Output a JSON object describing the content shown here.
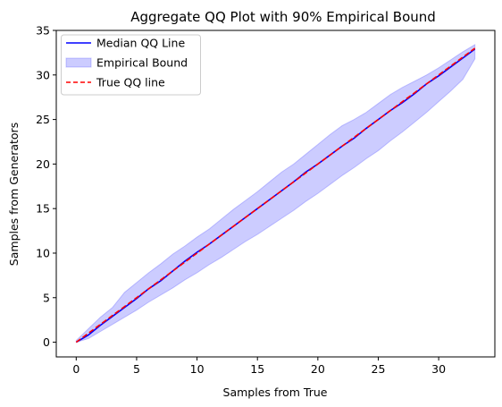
{
  "chart_data": {
    "type": "line",
    "title": "Aggregate QQ Plot with  90% Empirical Bound",
    "xlabel": "Samples from True",
    "ylabel": "Samples from Generators",
    "xlim": [
      -1.65,
      34.65
    ],
    "ylim": [
      -1.65,
      35.0
    ],
    "xticks": [
      0,
      5,
      10,
      15,
      20,
      25,
      30
    ],
    "yticks": [
      0,
      5,
      10,
      15,
      20,
      25,
      30,
      35
    ],
    "grid": false,
    "legend_position": "top-left",
    "legend": [
      {
        "label": "Median QQ Line",
        "kind": "line",
        "color": "#0000ff"
      },
      {
        "label": "Empirical Bound",
        "kind": "band",
        "color": "#0000ff"
      },
      {
        "label": "True QQ line",
        "kind": "dashed-line",
        "color": "#ff0000"
      }
    ],
    "series": [
      {
        "name": "Median QQ Line",
        "color": "#0000ff",
        "x": [
          0,
          1,
          2,
          3,
          4,
          5,
          6,
          7,
          8,
          9,
          10,
          11,
          12,
          13,
          14,
          15,
          16,
          17,
          18,
          19,
          20,
          21,
          22,
          23,
          24,
          25,
          26,
          27,
          28,
          29,
          30,
          31,
          32,
          33
        ],
        "y": [
          0,
          0.8,
          1.9,
          2.9,
          3.9,
          4.9,
          6.0,
          6.9,
          8.0,
          9.1,
          10.1,
          11.0,
          12.0,
          13.0,
          14.0,
          15.0,
          16.0,
          17.0,
          18.0,
          19.1,
          20.0,
          21.0,
          22.0,
          22.9,
          24.0,
          25.0,
          26.0,
          26.9,
          27.9,
          29.0,
          29.9,
          30.9,
          31.9,
          32.9
        ]
      },
      {
        "name": "Empirical Bound",
        "color": "#0000ff",
        "x": [
          0,
          1,
          2,
          3,
          4,
          5,
          6,
          7,
          8,
          9,
          10,
          11,
          12,
          13,
          14,
          15,
          16,
          17,
          18,
          19,
          20,
          21,
          22,
          23,
          24,
          25,
          26,
          27,
          28,
          29,
          30,
          31,
          32,
          33
        ],
        "lower": [
          0,
          0.4,
          1.2,
          2.0,
          2.8,
          3.6,
          4.5,
          5.3,
          6.1,
          7.0,
          7.8,
          8.7,
          9.5,
          10.4,
          11.3,
          12.1,
          13.0,
          13.9,
          14.8,
          15.8,
          16.7,
          17.7,
          18.7,
          19.6,
          20.6,
          21.5,
          22.6,
          23.6,
          24.7,
          25.8,
          27.0,
          28.2,
          29.5,
          31.8
        ],
        "upper": [
          0.2,
          1.5,
          2.8,
          3.9,
          5.6,
          6.7,
          7.8,
          8.8,
          9.9,
          10.8,
          11.8,
          12.7,
          13.8,
          14.9,
          15.9,
          16.9,
          18.0,
          19.1,
          20.0,
          21.1,
          22.2,
          23.3,
          24.3,
          25.0,
          25.8,
          26.8,
          27.8,
          28.6,
          29.3,
          30.0,
          30.8,
          31.7,
          32.6,
          33.4
        ]
      },
      {
        "name": "True QQ line",
        "color": "#ff0000",
        "x": [
          0,
          33
        ],
        "y": [
          0,
          33
        ]
      }
    ]
  }
}
